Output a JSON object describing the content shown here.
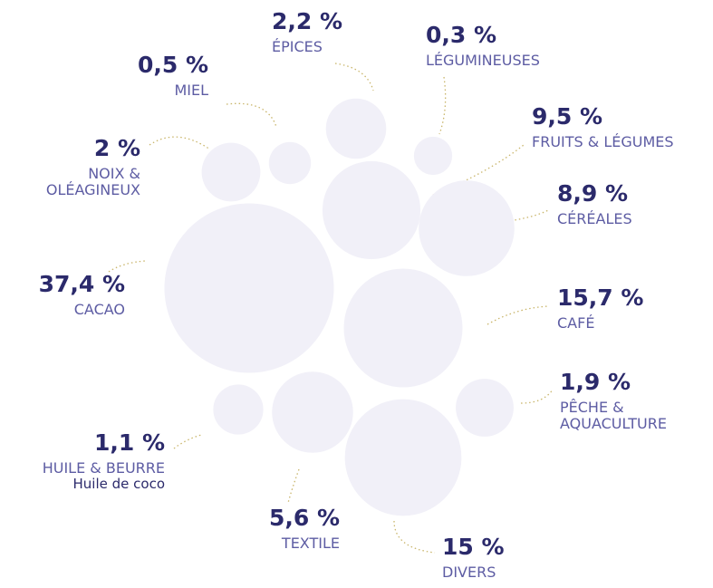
{
  "chart_data": {
    "type": "bubble",
    "categories": [
      "CACAO",
      "CAFÉ",
      "DIVERS",
      "FRUITS & LÉGUMES",
      "CÉRÉALES",
      "TEXTILE",
      "ÉPICES",
      "NOIX &\nOLÉAGINEUX",
      "PÊCHE &\nAQUACULTURE",
      "HUILE & BEURRE",
      "MIEL",
      "LÉGUMINEUSES"
    ],
    "values": [
      37.4,
      15.7,
      15,
      9.5,
      8.9,
      5.6,
      2.2,
      2,
      1.9,
      1.1,
      0.5,
      0.3
    ],
    "value_labels": [
      "37,4 %",
      "15,7 %",
      "15 %",
      "9,5 %",
      "8,9 %",
      "5,6 %",
      "2,2 %",
      "2 %",
      "1,9 %",
      "1,1 %",
      "0,5 %",
      "0,3 %"
    ],
    "annotation": "Huile de coco",
    "color": "#f1f0f8"
  }
}
